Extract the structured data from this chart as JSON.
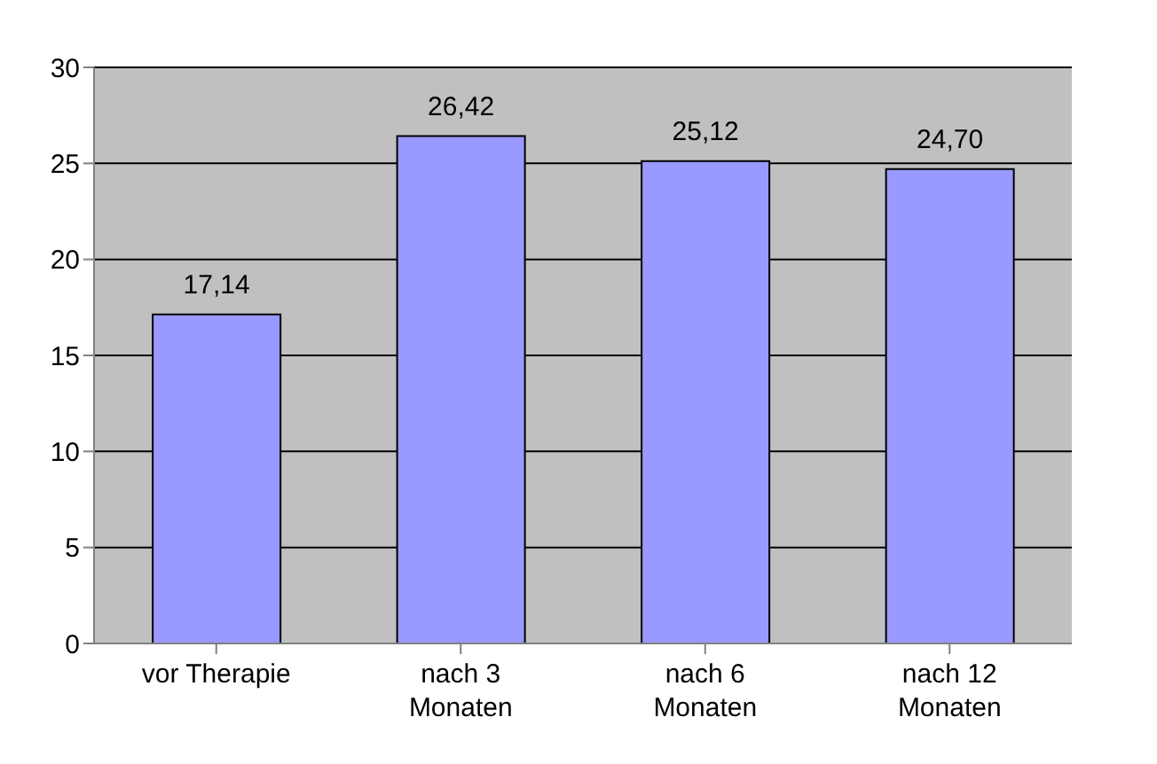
{
  "chart_data": {
    "type": "bar",
    "categories": [
      "vor Therapie",
      "nach 3 Monaten",
      "nach 6 Monaten",
      "nach 12 Monaten"
    ],
    "values": [
      17.14,
      26.42,
      25.12,
      24.7
    ],
    "value_labels": [
      "17,14",
      "26,42",
      "25,12",
      "24,70"
    ],
    "color": "#9999ff",
    "ylim": [
      0,
      30
    ],
    "yticks": [
      0,
      5,
      10,
      15,
      20,
      25,
      30
    ],
    "grid": "y"
  }
}
